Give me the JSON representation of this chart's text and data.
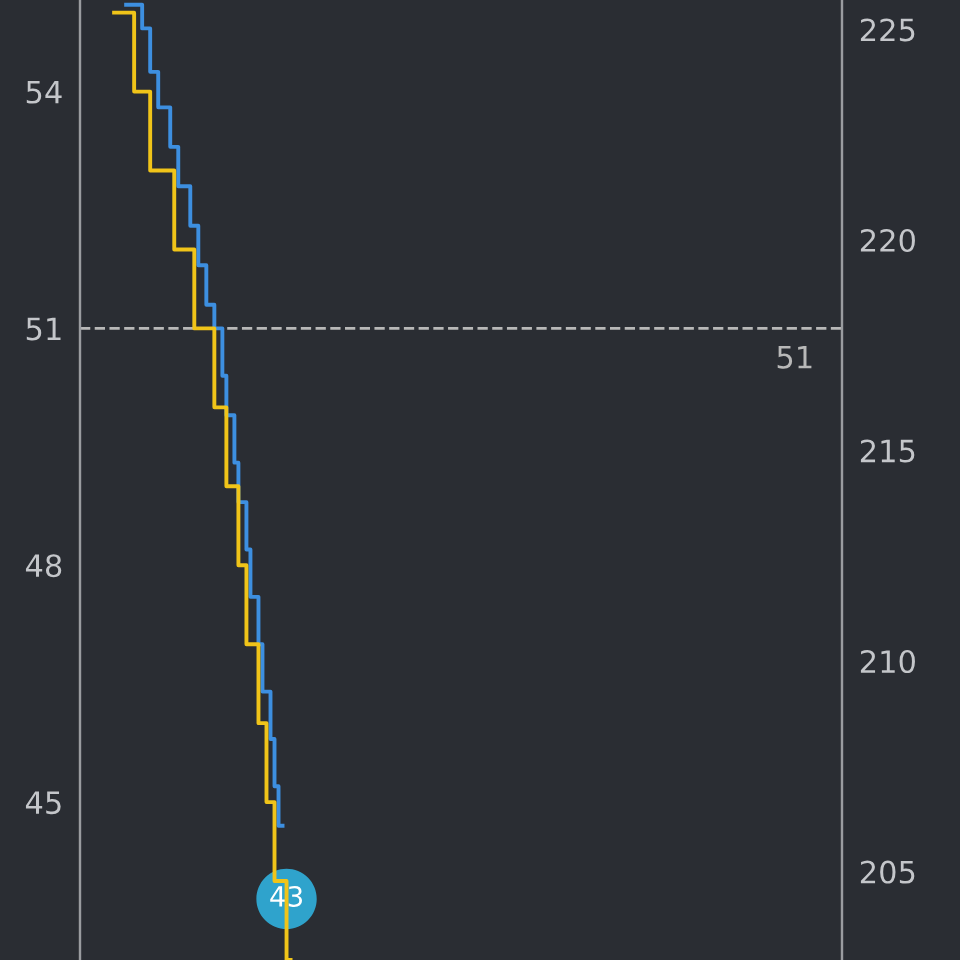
{
  "chart_data": {
    "type": "step",
    "categories": [
      null,
      null,
      null,
      null,
      null,
      null,
      null,
      null,
      null,
      null,
      null,
      null,
      null,
      null,
      null,
      null,
      null,
      null,
      null,
      null,
      null,
      null,
      null,
      null,
      null,
      null,
      null,
      null,
      null,
      null,
      null,
      null,
      null,
      null,
      null,
      null,
      null,
      null,
      null,
      null,
      null,
      null,
      null,
      null,
      null,
      null,
      null,
      null,
      null,
      null,
      null,
      null,
      null,
      null,
      null,
      null,
      null,
      null,
      null,
      null,
      null,
      null,
      null,
      null,
      null,
      null,
      null,
      null,
      null,
      null,
      null,
      null,
      null,
      null,
      null,
      null,
      null,
      null,
      null,
      null,
      null,
      null,
      null,
      null,
      null,
      null,
      null,
      null,
      null,
      null,
      null,
      null,
      null,
      null,
      null,
      null,
      null,
      null,
      null,
      null,
      null,
      null,
      null,
      null,
      null,
      null,
      null,
      null,
      null,
      null,
      null,
      null,
      null,
      null,
      null,
      null,
      null,
      null,
      null,
      null,
      null,
      null,
      null,
      null,
      null,
      null,
      null,
      null,
      null,
      null,
      null,
      null,
      null,
      null,
      null,
      null,
      null,
      null,
      null,
      null,
      null,
      null,
      null,
      null,
      null,
      null,
      null,
      null,
      null,
      null,
      null,
      null,
      null,
      null,
      null,
      null,
      null,
      null,
      null,
      null,
      null,
      null,
      null,
      null,
      null,
      null,
      null,
      null,
      null,
      null,
      null,
      null,
      null,
      null,
      null,
      null,
      null,
      null,
      null,
      null,
      null,
      null,
      null,
      null,
      null,
      null,
      null,
      null,
      null,
      null
    ],
    "series": [
      {
        "color": "#3d8fe0",
        "values": [
          null,
          null,
          null,
          null,
          null,
          null,
          null,
          null,
          null,
          null,
          null,
          55.1,
          55.1,
          55.1,
          55.1,
          54.8,
          54.8,
          54.25,
          54.25,
          53.8,
          53.8,
          53.8,
          53.3,
          53.3,
          52.8,
          52.8,
          52.8,
          52.3,
          52.3,
          51.8,
          51.8,
          51.3,
          51.3,
          51.0,
          51.0,
          50.4,
          49.9,
          49.9,
          49.3,
          48.8,
          48.8,
          48.2,
          47.6,
          47.6,
          47.0,
          46.4,
          46.4,
          45.8,
          45.2,
          44.7,
          null,
          null,
          null,
          null,
          null,
          null,
          null,
          null,
          null,
          null,
          null,
          null,
          null,
          null,
          null,
          null,
          null,
          null,
          null,
          null,
          null,
          null,
          null,
          null,
          null,
          null,
          null,
          null,
          null,
          null,
          null,
          null,
          null,
          null,
          null,
          null,
          null,
          null,
          null,
          null,
          null,
          null,
          null,
          null,
          null,
          null,
          null,
          null,
          null,
          null,
          null,
          null,
          null,
          null,
          null,
          null,
          null,
          null,
          null,
          null,
          null,
          null,
          null,
          null,
          null,
          null,
          null,
          null,
          null,
          null,
          null,
          null,
          null,
          null,
          null,
          null,
          null,
          null,
          null,
          null,
          null,
          null,
          null,
          null,
          null,
          null,
          null,
          null,
          null,
          null,
          null,
          null,
          null,
          null,
          null,
          null,
          null,
          null,
          null,
          null,
          null,
          null,
          null,
          null,
          null,
          null,
          null,
          null,
          null,
          null,
          null,
          null,
          null,
          null,
          null,
          null,
          null,
          null,
          null,
          null,
          null,
          null,
          null,
          null,
          null,
          null,
          null,
          null,
          null,
          null,
          null,
          null,
          null,
          null,
          null,
          null,
          null,
          null,
          null,
          null
        ]
      },
      {
        "color": "#f0c419",
        "values": [
          null,
          null,
          null,
          null,
          null,
          null,
          null,
          null,
          55,
          55,
          55,
          55,
          55,
          54,
          54,
          54,
          54,
          53,
          53,
          53,
          53,
          53,
          53,
          52,
          52,
          52,
          52,
          52,
          51,
          51,
          51,
          51,
          51,
          50,
          50,
          50,
          49,
          49,
          49,
          48,
          48,
          47,
          47,
          47,
          46,
          46,
          45,
          45,
          44,
          44,
          44,
          43,
          null,
          null,
          null,
          null,
          null,
          null,
          null,
          null,
          null,
          null,
          null,
          null,
          null,
          null,
          null,
          null,
          null,
          null,
          null,
          null,
          null,
          null,
          null,
          null,
          null,
          null,
          null,
          null,
          null,
          null,
          null,
          null,
          null,
          null,
          null,
          null,
          null,
          null,
          null,
          null,
          null,
          null,
          null,
          null,
          null,
          null,
          null,
          null,
          null,
          null,
          null,
          null,
          null,
          null,
          null,
          null,
          null,
          null,
          null,
          null,
          null,
          null,
          null,
          null,
          null,
          null,
          null,
          null,
          null,
          null,
          null,
          null,
          null,
          null,
          null,
          null,
          null,
          null,
          null,
          null,
          null,
          null,
          null,
          null,
          null,
          null,
          null,
          null,
          null,
          null,
          null,
          null,
          null,
          null,
          null,
          null,
          null,
          null,
          null,
          null,
          null,
          null,
          null,
          null,
          null,
          null,
          null,
          null,
          null,
          null,
          null,
          null,
          null,
          null,
          null,
          null,
          null,
          null,
          null,
          null,
          null,
          null,
          null,
          null,
          null,
          null,
          null,
          null,
          null,
          null,
          null,
          null,
          null,
          null,
          null,
          null,
          null,
          null
        ]
      }
    ],
    "ylim": [
      43.0,
      55.16
    ],
    "yticks": [
      45,
      48,
      51,
      54
    ],
    "y2lim": [
      202.9,
      225.7
    ],
    "y2ticks": [
      205,
      210,
      215,
      220,
      225
    ],
    "ref_lines": [
      {
        "axis": "y",
        "value": 51,
        "label": "51",
        "color": "#b8b8b8",
        "line_style": "dashed"
      }
    ],
    "annotations": [
      {
        "text": "43",
        "y": 43
      }
    ],
    "grid": false,
    "legend": false,
    "marker": "none",
    "line_style": "solid"
  }
}
